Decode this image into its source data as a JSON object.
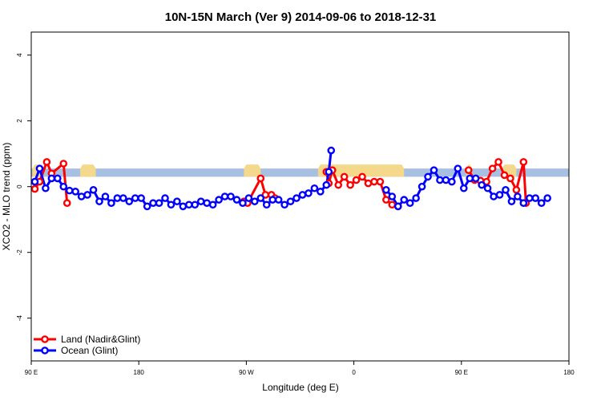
{
  "chart_data": {
    "type": "line",
    "title": "10N-15N March (Ver 9)   2014-09-06 to 2018-12-31",
    "xlabel": "Longitude (deg E)",
    "ylabel": "XCO2 - MLO trend (ppm)",
    "xlim": [
      90,
      540
    ],
    "ylim": [
      -5.3,
      4.7
    ],
    "x_ticks": [
      {
        "value": 90,
        "label": "90 E"
      },
      {
        "value": 180,
        "label": "180"
      },
      {
        "value": 270,
        "label": "90 W"
      },
      {
        "value": 360,
        "label": "0"
      },
      {
        "value": 450,
        "label": "90 E"
      },
      {
        "value": 540,
        "label": "180"
      }
    ],
    "y_ticks": [
      {
        "value": -4,
        "label": "-4"
      },
      {
        "value": -2,
        "label": "-2"
      },
      {
        "value": 0,
        "label": "0"
      },
      {
        "value": 2,
        "label": "2"
      },
      {
        "value": 4,
        "label": "4"
      }
    ],
    "band": {
      "ymin": 0.3,
      "ymax": 0.55,
      "ocean_color": "#a7bfe0",
      "land_color": "#f4d98c",
      "land_segments": [
        [
          91,
          99
        ],
        [
          131,
          144
        ],
        [
          268,
          282
        ],
        [
          330,
          402
        ],
        [
          454,
          459
        ],
        [
          484,
          496
        ]
      ]
    },
    "legend": {
      "position": "bottom-left",
      "entries": [
        {
          "label": "Land (Nadir&Glint)",
          "color": "#ff0000"
        },
        {
          "label": "Ocean (Glint)",
          "color": "#0000ff"
        }
      ]
    },
    "series": [
      {
        "name": "Land (Nadir&Glint)",
        "color": "#ff0000",
        "segments": [
          [
            [
              93,
              -0.07
            ],
            [
              97,
              0.15
            ],
            [
              103,
              0.75
            ],
            [
              107,
              0.4
            ],
            [
              117,
              0.7
            ],
            [
              120,
              -0.5
            ]
          ],
          [
            [
              268,
              -0.45
            ],
            [
              271,
              -0.5
            ],
            [
              282,
              0.25
            ],
            [
              286,
              -0.25
            ],
            [
              291,
              -0.25
            ],
            [
              294,
              -0.35
            ]
          ],
          [
            [
              337,
              0.45
            ],
            [
              339,
              0.1
            ],
            [
              342,
              0.5
            ],
            [
              347,
              0.05
            ],
            [
              352,
              0.3
            ],
            [
              357,
              0.05
            ],
            [
              362,
              0.2
            ],
            [
              367,
              0.3
            ],
            [
              372,
              0.1
            ],
            [
              377,
              0.15
            ],
            [
              382,
              0.15
            ],
            [
              387,
              -0.4
            ],
            [
              392,
              -0.55
            ],
            [
              397,
              -0.6
            ]
          ],
          [
            [
              456,
              0.5
            ],
            [
              461,
              0.2
            ],
            [
              466,
              0.18
            ],
            [
              471,
              0.15
            ],
            [
              476,
              0.55
            ],
            [
              481,
              0.75
            ],
            [
              486,
              0.35
            ],
            [
              491,
              0.25
            ],
            [
              496,
              -0.1
            ],
            [
              502,
              0.75
            ],
            [
              504,
              -0.5
            ]
          ]
        ]
      },
      {
        "name": "Ocean (Glint)",
        "color": "#0000ff",
        "segments": [
          [
            [
              93,
              0.15
            ],
            [
              97,
              0.55
            ],
            [
              102,
              -0.05
            ],
            [
              107,
              0.25
            ],
            [
              112,
              0.25
            ],
            [
              117,
              0.0
            ],
            [
              122,
              -0.12
            ],
            [
              127,
              -0.15
            ],
            [
              132,
              -0.3
            ],
            [
              137,
              -0.25
            ],
            [
              142,
              -0.1
            ],
            [
              147,
              -0.45
            ],
            [
              152,
              -0.3
            ],
            [
              157,
              -0.5
            ],
            [
              162,
              -0.35
            ],
            [
              167,
              -0.35
            ],
            [
              172,
              -0.45
            ],
            [
              177,
              -0.35
            ],
            [
              182,
              -0.35
            ],
            [
              187,
              -0.6
            ],
            [
              192,
              -0.5
            ],
            [
              197,
              -0.5
            ],
            [
              202,
              -0.35
            ],
            [
              207,
              -0.55
            ],
            [
              212,
              -0.45
            ],
            [
              217,
              -0.6
            ],
            [
              222,
              -0.55
            ],
            [
              227,
              -0.55
            ],
            [
              232,
              -0.45
            ],
            [
              237,
              -0.5
            ],
            [
              242,
              -0.55
            ],
            [
              247,
              -0.4
            ],
            [
              252,
              -0.3
            ],
            [
              257,
              -0.3
            ],
            [
              262,
              -0.4
            ],
            [
              267,
              -0.5
            ],
            [
              272,
              -0.35
            ],
            [
              277,
              -0.45
            ],
            [
              282,
              -0.35
            ],
            [
              287,
              -0.55
            ],
            [
              292,
              -0.4
            ],
            [
              297,
              -0.4
            ],
            [
              302,
              -0.55
            ],
            [
              307,
              -0.45
            ],
            [
              312,
              -0.35
            ],
            [
              317,
              -0.25
            ],
            [
              322,
              -0.2
            ],
            [
              327,
              -0.05
            ],
            [
              332,
              -0.15
            ],
            [
              337,
              0.05
            ],
            [
              339,
              0.45
            ],
            [
              341,
              1.1
            ]
          ],
          [
            [
              387,
              -0.1
            ],
            [
              392,
              -0.3
            ],
            [
              397,
              -0.6
            ],
            [
              402,
              -0.4
            ],
            [
              407,
              -0.5
            ],
            [
              412,
              -0.35
            ],
            [
              417,
              0.0
            ],
            [
              422,
              0.3
            ],
            [
              427,
              0.5
            ],
            [
              432,
              0.2
            ],
            [
              437,
              0.2
            ],
            [
              442,
              0.15
            ],
            [
              447,
              0.55
            ],
            [
              452,
              -0.05
            ],
            [
              457,
              0.25
            ],
            [
              462,
              0.25
            ],
            [
              467,
              0.05
            ],
            [
              472,
              -0.05
            ],
            [
              477,
              -0.3
            ],
            [
              482,
              -0.25
            ],
            [
              487,
              -0.1
            ],
            [
              492,
              -0.45
            ],
            [
              497,
              -0.3
            ],
            [
              502,
              -0.5
            ],
            [
              507,
              -0.35
            ],
            [
              512,
              -0.35
            ],
            [
              517,
              -0.5
            ],
            [
              522,
              -0.35
            ]
          ]
        ]
      }
    ]
  }
}
